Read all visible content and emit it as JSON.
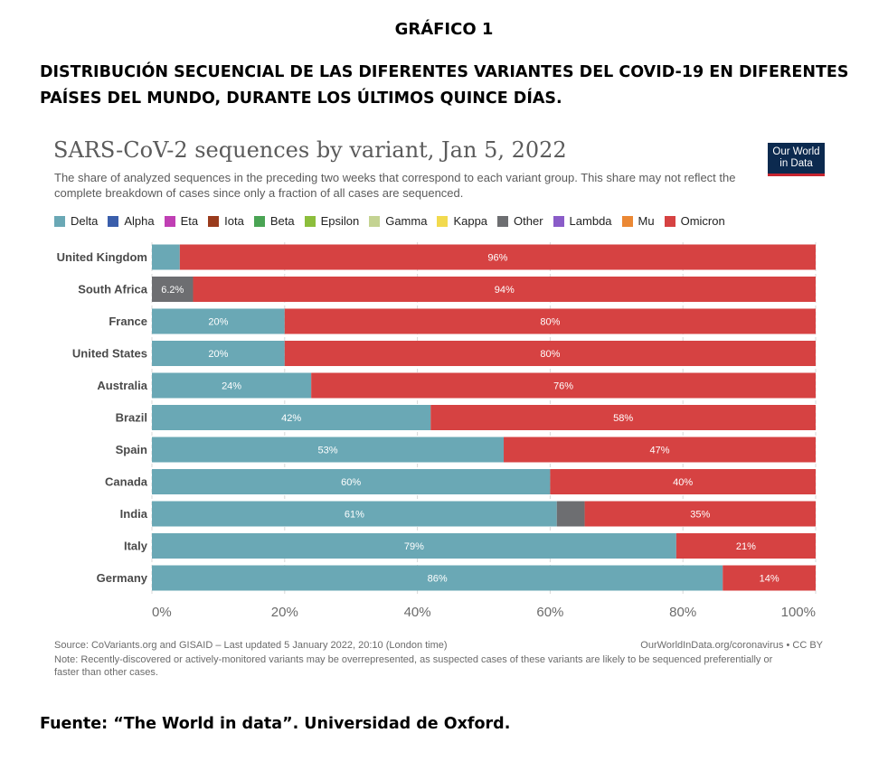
{
  "document": {
    "kicker": "GRÁFICO 1",
    "title_line1": "DISTRIBUCIÓN SECUENCIAL DE LAS DIFERENTES VARIANTES DEL COVID-19 EN DIFERENTES",
    "title_line2": "PAÍSES DEL MUNDO, DURANTE LOS ÚLTIMOS QUINCE DÍAS.",
    "source": "Fuente: “The World in data”. Universidad de Oxford."
  },
  "logo": {
    "line1": "Our World",
    "line2": "in Data"
  },
  "footer": {
    "source": "Source: CoVariants.org and GISAID – Last updated 5 January 2022, 20:10 (London time)",
    "site": "OurWorldInData.org/coronavirus • CC BY",
    "note": "Note: Recently-discovered or actively-monitored variants may be overrepresented, as suspected cases of these variants are likely to be sequenced preferentially or faster than other cases."
  },
  "chart_data": {
    "type": "bar",
    "orientation": "horizontal",
    "stacked": true,
    "title": "SARS-CoV-2 sequences by variant, Jan 5, 2022",
    "subtitle": "The share of analyzed sequences in the preceding two weeks that correspond to each variant group. This share may not reflect the complete breakdown of cases since only a fraction of all cases are sequenced.",
    "legend_position": "top",
    "legend": [
      {
        "name": "Delta",
        "color": "#6aa8b5"
      },
      {
        "name": "Alpha",
        "color": "#3a5eab"
      },
      {
        "name": "Eta",
        "color": "#c03fb4"
      },
      {
        "name": "Iota",
        "color": "#9a3b1d"
      },
      {
        "name": "Beta",
        "color": "#4aa454"
      },
      {
        "name": "Epsilon",
        "color": "#8cbe3c"
      },
      {
        "name": "Gamma",
        "color": "#c4d392"
      },
      {
        "name": "Kappa",
        "color": "#f2da4e"
      },
      {
        "name": "Other",
        "color": "#6d6e71"
      },
      {
        "name": "Lambda",
        "color": "#8a5cc8"
      },
      {
        "name": "Mu",
        "color": "#eb8834"
      },
      {
        "name": "Omicron",
        "color": "#d64242"
      }
    ],
    "categories": [
      "United Kingdom",
      "South Africa",
      "France",
      "United States",
      "Australia",
      "Brazil",
      "Spain",
      "Canada",
      "India",
      "Italy",
      "Germany"
    ],
    "series": [
      {
        "name": "Delta",
        "color": "#6aa8b5",
        "values": [
          4.2,
          0,
          20,
          20,
          24,
          42,
          53,
          60,
          61,
          79,
          86
        ],
        "labels": [
          "",
          "",
          "20%",
          "20%",
          "24%",
          "42%",
          "53%",
          "60%",
          "61%",
          "79%",
          "86%"
        ]
      },
      {
        "name": "Other",
        "color": "#6d6e71",
        "values": [
          0,
          6.2,
          0,
          0,
          0,
          0,
          0,
          0,
          4.2,
          0,
          0
        ],
        "labels": [
          "",
          "6.2%",
          "",
          "",
          "",
          "",
          "",
          "",
          "",
          "",
          ""
        ]
      },
      {
        "name": "Omicron",
        "color": "#d64242",
        "values": [
          95.8,
          93.8,
          80,
          80,
          76,
          58,
          47,
          40,
          34.8,
          21,
          14
        ],
        "labels": [
          "96%",
          "94%",
          "80%",
          "80%",
          "76%",
          "58%",
          "47%",
          "40%",
          "35%",
          "21%",
          "14%"
        ]
      }
    ],
    "xlim": [
      0,
      100
    ],
    "xticks": [
      "0%",
      "20%",
      "40%",
      "60%",
      "80%",
      "100%"
    ],
    "grid": true
  }
}
